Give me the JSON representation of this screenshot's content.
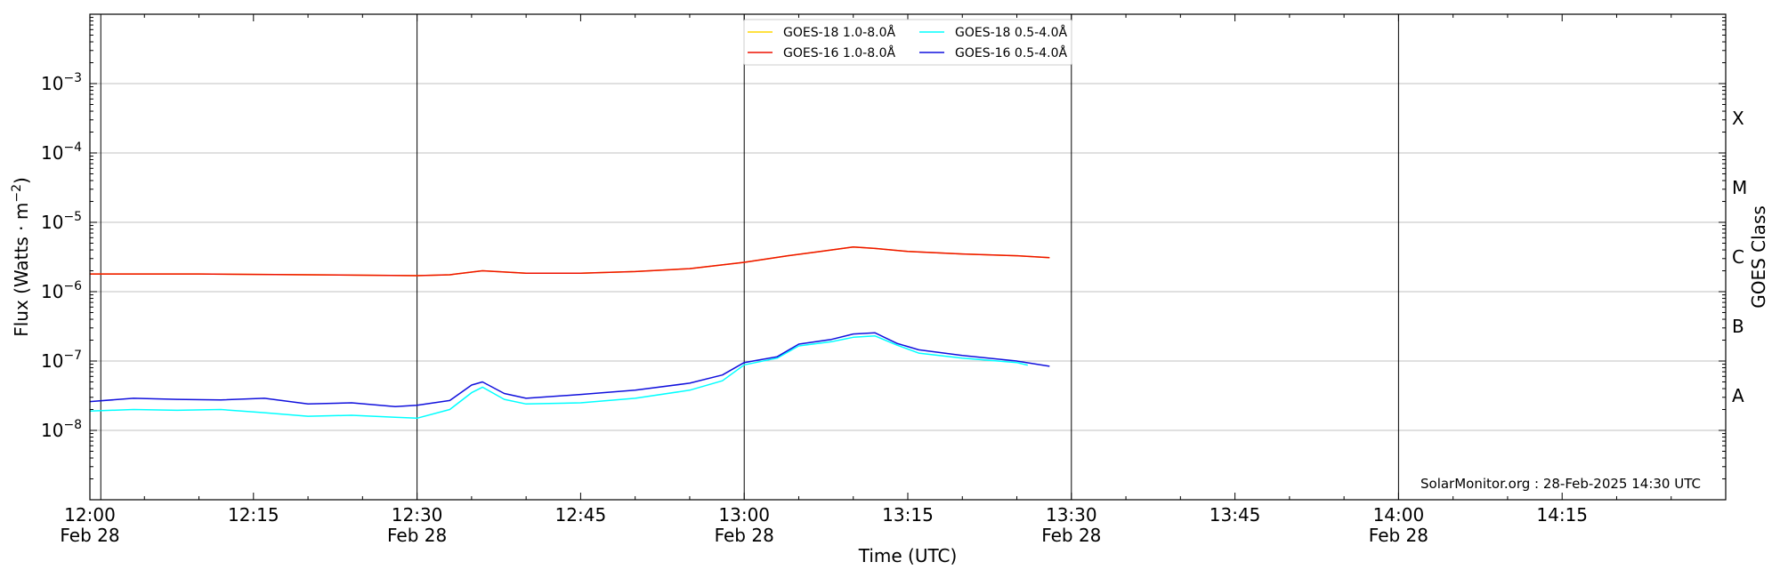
{
  "chart_data": {
    "type": "line",
    "xlabel": "Time (UTC)",
    "ylabel": "Flux (Watts · m",
    "ylabel_sup": "−2",
    "ylabel_suffix": ")",
    "y2label": "GOES Class",
    "yscale": "log",
    "ylim": [
      1e-09,
      0.01
    ],
    "xlim_minutes": [
      0,
      150
    ],
    "grid": "horizontal",
    "legend_position": "top-center",
    "credit": "SolarMonitor.org : 28-Feb-2025 14:30 UTC",
    "x_ticks": [
      {
        "major": "12:00",
        "minor": "Feb 28",
        "t": 0
      },
      {
        "major": "12:15",
        "minor": "",
        "t": 15
      },
      {
        "major": "12:30",
        "minor": "Feb 28",
        "t": 30
      },
      {
        "major": "12:45",
        "minor": "",
        "t": 45
      },
      {
        "major": "13:00",
        "minor": "Feb 28",
        "t": 60
      },
      {
        "major": "13:15",
        "minor": "",
        "t": 75
      },
      {
        "major": "13:30",
        "minor": "Feb 28",
        "t": 90
      },
      {
        "major": "13:45",
        "minor": "",
        "t": 105
      },
      {
        "major": "14:00",
        "minor": "Feb 28",
        "t": 120
      },
      {
        "major": "14:15",
        "minor": "",
        "t": 135
      }
    ],
    "y_ticks": [
      {
        "base": "10",
        "exp": "−8",
        "v": -8
      },
      {
        "base": "10",
        "exp": "−7",
        "v": -7
      },
      {
        "base": "10",
        "exp": "−6",
        "v": -6
      },
      {
        "base": "10",
        "exp": "−5",
        "v": -5
      },
      {
        "base": "10",
        "exp": "−4",
        "v": -4
      },
      {
        "base": "10",
        "exp": "−3",
        "v": -3
      }
    ],
    "goes_classes": [
      {
        "label": "A",
        "v": -7.5
      },
      {
        "label": "B",
        "v": -6.5
      },
      {
        "label": "C",
        "v": -5.5
      },
      {
        "label": "M",
        "v": -4.5
      },
      {
        "label": "X",
        "v": -3.5
      }
    ],
    "day_lines_minutes": [
      1,
      30,
      60,
      90,
      120
    ],
    "series": [
      {
        "name": "GOES-18 1.0-8.0Å",
        "color": "#ffd700",
        "t": [
          0,
          10,
          20,
          30,
          33,
          36,
          40,
          45,
          50,
          55,
          60,
          64,
          67,
          70,
          72,
          75,
          80,
          85,
          88
        ],
        "y": [
          1.8e-06,
          1.8e-06,
          1.75e-06,
          1.7e-06,
          1.75e-06,
          2e-06,
          1.85e-06,
          1.85e-06,
          1.95e-06,
          2.15e-06,
          2.65e-06,
          3.3e-06,
          3.8e-06,
          4.4e-06,
          4.2e-06,
          3.8e-06,
          3.5e-06,
          3.3e-06,
          3.1e-06
        ]
      },
      {
        "name": "GOES-16 1.0-8.0Å",
        "color": "#ee1100",
        "t": [
          0,
          10,
          20,
          30,
          33,
          36,
          40,
          45,
          50,
          55,
          60,
          64,
          67,
          70,
          72,
          75,
          80,
          85,
          88
        ],
        "y": [
          1.8e-06,
          1.8e-06,
          1.75e-06,
          1.7e-06,
          1.75e-06,
          2e-06,
          1.85e-06,
          1.85e-06,
          1.95e-06,
          2.15e-06,
          2.65e-06,
          3.3e-06,
          3.8e-06,
          4.4e-06,
          4.2e-06,
          3.8e-06,
          3.5e-06,
          3.3e-06,
          3.1e-06
        ]
      },
      {
        "name": "GOES-18 0.5-4.0Å",
        "color": "#00ffff",
        "t": [
          0,
          4,
          8,
          12,
          16,
          20,
          24,
          28,
          30,
          33,
          35,
          36,
          38,
          40,
          45,
          50,
          55,
          58,
          60,
          63,
          65,
          68,
          70,
          72,
          74,
          76,
          80,
          85,
          86
        ],
        "y": [
          1.9e-08,
          2e-08,
          1.95e-08,
          2e-08,
          1.8e-08,
          1.6e-08,
          1.65e-08,
          1.55e-08,
          1.5e-08,
          2e-08,
          3.5e-08,
          4.2e-08,
          2.8e-08,
          2.4e-08,
          2.5e-08,
          2.9e-08,
          3.8e-08,
          5.2e-08,
          8.8e-08,
          1.1e-07,
          1.65e-07,
          1.9e-07,
          2.2e-07,
          2.3e-07,
          1.7e-07,
          1.3e-07,
          1.1e-07,
          9.5e-08,
          8.7e-08
        ]
      },
      {
        "name": "GOES-16 0.5-4.0Å",
        "color": "#1010dd",
        "t": [
          0,
          4,
          8,
          12,
          16,
          20,
          24,
          28,
          30,
          33,
          35,
          36,
          38,
          40,
          45,
          50,
          55,
          58,
          60,
          63,
          65,
          68,
          70,
          72,
          74,
          76,
          80,
          85,
          88
        ],
        "y": [
          2.6e-08,
          2.9e-08,
          2.8e-08,
          2.75e-08,
          2.9e-08,
          2.4e-08,
          2.5e-08,
          2.2e-08,
          2.3e-08,
          2.7e-08,
          4.5e-08,
          5e-08,
          3.4e-08,
          2.9e-08,
          3.3e-08,
          3.8e-08,
          4.8e-08,
          6.3e-08,
          9.5e-08,
          1.15e-07,
          1.75e-07,
          2.05e-07,
          2.45e-07,
          2.55e-07,
          1.8e-07,
          1.45e-07,
          1.2e-07,
          1e-07,
          8.4e-08
        ]
      }
    ]
  }
}
